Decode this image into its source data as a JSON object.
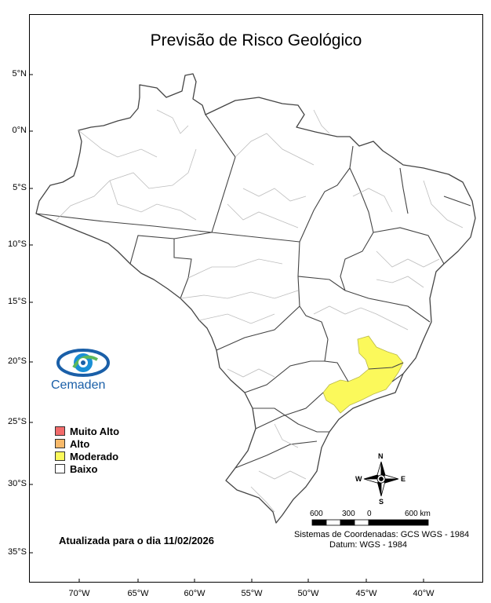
{
  "title": "Previsão de Risco Geológico",
  "lat_labels": [
    "5°N",
    "0°N",
    "5°S",
    "10°S",
    "15°S",
    "20°S",
    "25°S",
    "30°S",
    "35°S"
  ],
  "lon_labels": [
    "70°W",
    "65°W",
    "60°W",
    "55°W",
    "50°W",
    "45°W",
    "40°W"
  ],
  "legend": [
    {
      "label": "Muito Alto",
      "color": "#f26b6b"
    },
    {
      "label": "Alto",
      "color": "#f7b96a"
    },
    {
      "label": "Moderado",
      "color": "#fbf95b"
    },
    {
      "label": "Baixo",
      "color": "#ffffff"
    }
  ],
  "logo": {
    "name": "Cemaden"
  },
  "updated": "Atualizada para o dia 11/02/2026",
  "scale": {
    "labels": [
      "600",
      "300",
      "0",
      "600 km"
    ]
  },
  "compass": {
    "n": "N",
    "s": "S",
    "e": "E",
    "w": "W"
  },
  "coordinate_system": "Sistemas de Coordenadas: GCS WGS - 1984",
  "datum": "Datum: WGS - 1984",
  "colors": {
    "moderado_fill": "#fbf95b",
    "state_border": "#444444",
    "municipal_border": "#bdbdbd"
  }
}
